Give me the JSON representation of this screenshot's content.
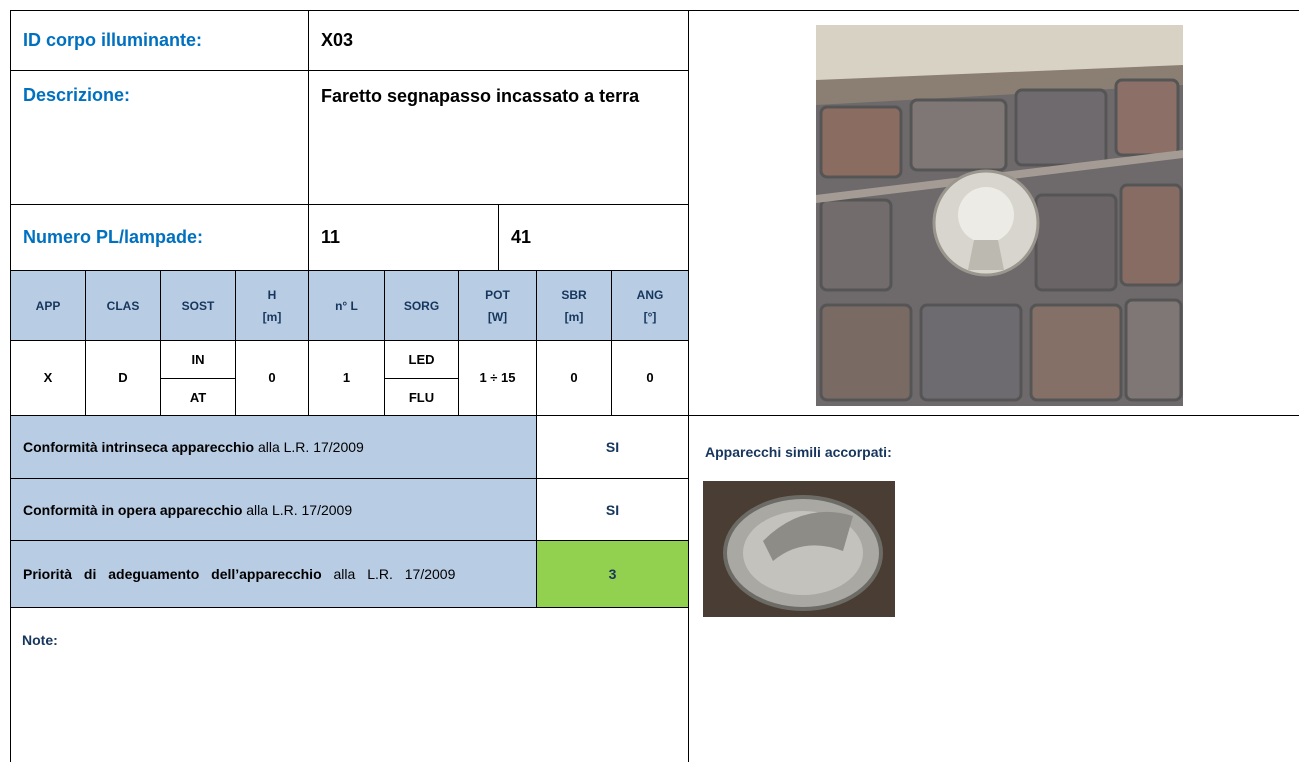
{
  "header": {
    "id_label": "ID corpo illuminante:",
    "id_value": "X03",
    "description_label": "Descrizione:",
    "description_value": "Faretto segnapasso incassato a terra",
    "number_label": "Numero PL/lampade:",
    "number_pl": "11",
    "number_lamps": "41"
  },
  "table": {
    "columns": [
      [
        "APP"
      ],
      [
        "CLAS"
      ],
      [
        "SOST"
      ],
      [
        "H",
        "[m]"
      ],
      [
        "n° L"
      ],
      [
        "SORG"
      ],
      [
        "POT",
        "[W]"
      ],
      [
        "SBR",
        "[m]"
      ],
      [
        "ANG",
        "[°]"
      ]
    ],
    "row": {
      "app": "X",
      "clas": "D",
      "sost": [
        "IN",
        "AT"
      ],
      "h": "0",
      "nl": "1",
      "sorg": [
        "LED",
        "FLU"
      ],
      "pot": "1 ÷ 15",
      "sbr": "0",
      "ang": "0"
    }
  },
  "conformity": [
    {
      "label_bold": "Conformità intrinseca apparecchio",
      "label_rest": "alla L.R. 17/2009",
      "value": "SI"
    },
    {
      "label_bold": "Conformità in opera apparecchio",
      "label_rest": "alla L.R. 17/2009",
      "value": "SI"
    },
    {
      "label_bold": "Priorità di adeguamento dell’apparecchio",
      "label_rest": "alla L.R. 17/2009",
      "value": "3"
    }
  ],
  "notes_label": "Note:",
  "similar_label": "Apparecchi simili accorpati:"
}
